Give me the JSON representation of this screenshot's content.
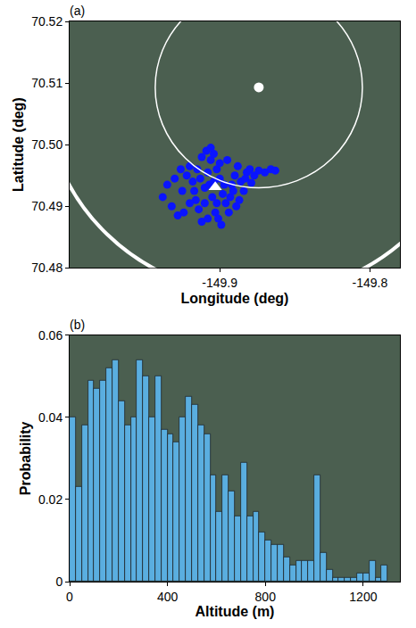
{
  "chart_data": [
    {
      "type": "scatter",
      "panel": "(a)",
      "x_label": "Longitude (deg)",
      "y_label": "Latitude (deg)",
      "xlim": [
        -150.0,
        -149.78
      ],
      "ylim": [
        70.48,
        70.52
      ],
      "xticks": [
        -149.9,
        -149.8
      ],
      "yticks": [
        70.48,
        70.49,
        {
          "value": 70.5,
          "label": "70.50"
        },
        70.51,
        70.52
      ],
      "series": [
        {
          "color": "#0a14ff",
          "marker": "circle",
          "x": [
            -149.935,
            -149.938,
            -149.932,
            -149.928,
            -149.925,
            -149.922,
            -149.92,
            -149.918,
            -149.916,
            -149.914,
            -149.912,
            -149.91,
            -149.908,
            -149.906,
            -149.904,
            -149.902,
            -149.9,
            -149.898,
            -149.896,
            -149.894,
            -149.892,
            -149.89,
            -149.888,
            -149.886,
            -149.884,
            -149.882,
            -149.88,
            -149.877,
            -149.874,
            -149.87,
            -149.866,
            -149.863,
            -149.91,
            -149.905,
            -149.903,
            -149.901,
            -149.899,
            -149.915,
            -149.912,
            -149.909,
            -149.906,
            -149.9,
            -149.895,
            -149.893,
            -149.889,
            -149.887,
            -149.92,
            -149.924,
            -149.93,
            -149.926,
            -149.917,
            -149.913,
            -149.907,
            -149.904,
            -149.897,
            -149.891,
            -149.883,
            -149.879,
            -149.908,
            -149.902
          ],
          "y": [
            70.4935,
            70.4915,
            70.49,
            70.4885,
            70.4925,
            70.495,
            70.4965,
            70.494,
            70.491,
            70.4895,
            70.4875,
            70.493,
            70.4955,
            70.4975,
            70.4985,
            70.496,
            70.4945,
            70.492,
            70.4905,
            70.489,
            70.4935,
            70.495,
            70.4965,
            70.494,
            70.4925,
            70.4955,
            70.496,
            70.495,
            70.4958,
            70.4955,
            70.496,
            70.4958,
            70.4905,
            70.4915,
            70.489,
            70.488,
            70.487,
            70.496,
            70.498,
            70.499,
            70.4995,
            70.497,
            70.4975,
            70.4915,
            70.49,
            70.491,
            70.4905,
            70.489,
            70.4945,
            70.496,
            70.4925,
            70.4945,
            70.4935,
            70.494,
            70.4935,
            70.4925,
            70.4945,
            70.4938,
            70.488,
            70.4905
          ]
        },
        {
          "color": "#ffffff",
          "marker": "circle",
          "x": [
            -149.874
          ],
          "y": [
            70.5093
          ]
        },
        {
          "color": "#ffffff",
          "marker": "triangle-up",
          "x": [
            -149.903
          ],
          "y": [
            70.4931
          ]
        }
      ],
      "circles": [
        {
          "x": -149.874,
          "y": 70.5093,
          "x_radius": 0.069,
          "y_radius": 0.0163,
          "color": "#ffffff",
          "line_style": "thin"
        },
        {
          "x": -149.874,
          "y": 70.5093,
          "x_radius": 0.143,
          "y_radius": 0.0337,
          "color": "#ffffff",
          "line_style": "thick"
        }
      ]
    },
    {
      "type": "histogram",
      "panel": "(b)",
      "x_label": "Altitude (m)",
      "y_label": "Probability",
      "bins": [
        0,
        25,
        50,
        75,
        100,
        125,
        150,
        175,
        200,
        225,
        250,
        275,
        300,
        325,
        350,
        375,
        400,
        425,
        450,
        475,
        500,
        525,
        550,
        575,
        600,
        625,
        650,
        675,
        700,
        725,
        750,
        775,
        800,
        825,
        850,
        875,
        900,
        925,
        950,
        975,
        1000,
        1025,
        1050,
        1075,
        1100,
        1125,
        1150,
        1175,
        1200,
        1225,
        1250,
        1275,
        1300
      ],
      "values": [
        0.04,
        0.023,
        0.038,
        0.049,
        0.047,
        0.049,
        0.052,
        0.054,
        0.044,
        0.038,
        0.04,
        0.054,
        0.05,
        0.04,
        0.05,
        0.037,
        0.036,
        0.034,
        0.04,
        0.045,
        0.043,
        0.038,
        0.036,
        0.026,
        0.017,
        0.026,
        0.022,
        0.016,
        0.029,
        0.016,
        0.017,
        0.012,
        0.01,
        0.009,
        0.009,
        0.006,
        0.004,
        0.005,
        0.005,
        0.005,
        0.026,
        0.007,
        0.003,
        0.001,
        0.001,
        0.001,
        0.001,
        0.002,
        0.002,
        0.005,
        0.001,
        0.004
      ],
      "color": "#5aaee0",
      "xlim": [
        0,
        1350
      ],
      "ylim": [
        0,
        0.06
      ],
      "xticks": [
        0,
        400,
        800,
        1200
      ],
      "yticks": [
        0,
        0.02,
        0.04,
        0.06
      ]
    }
  ]
}
